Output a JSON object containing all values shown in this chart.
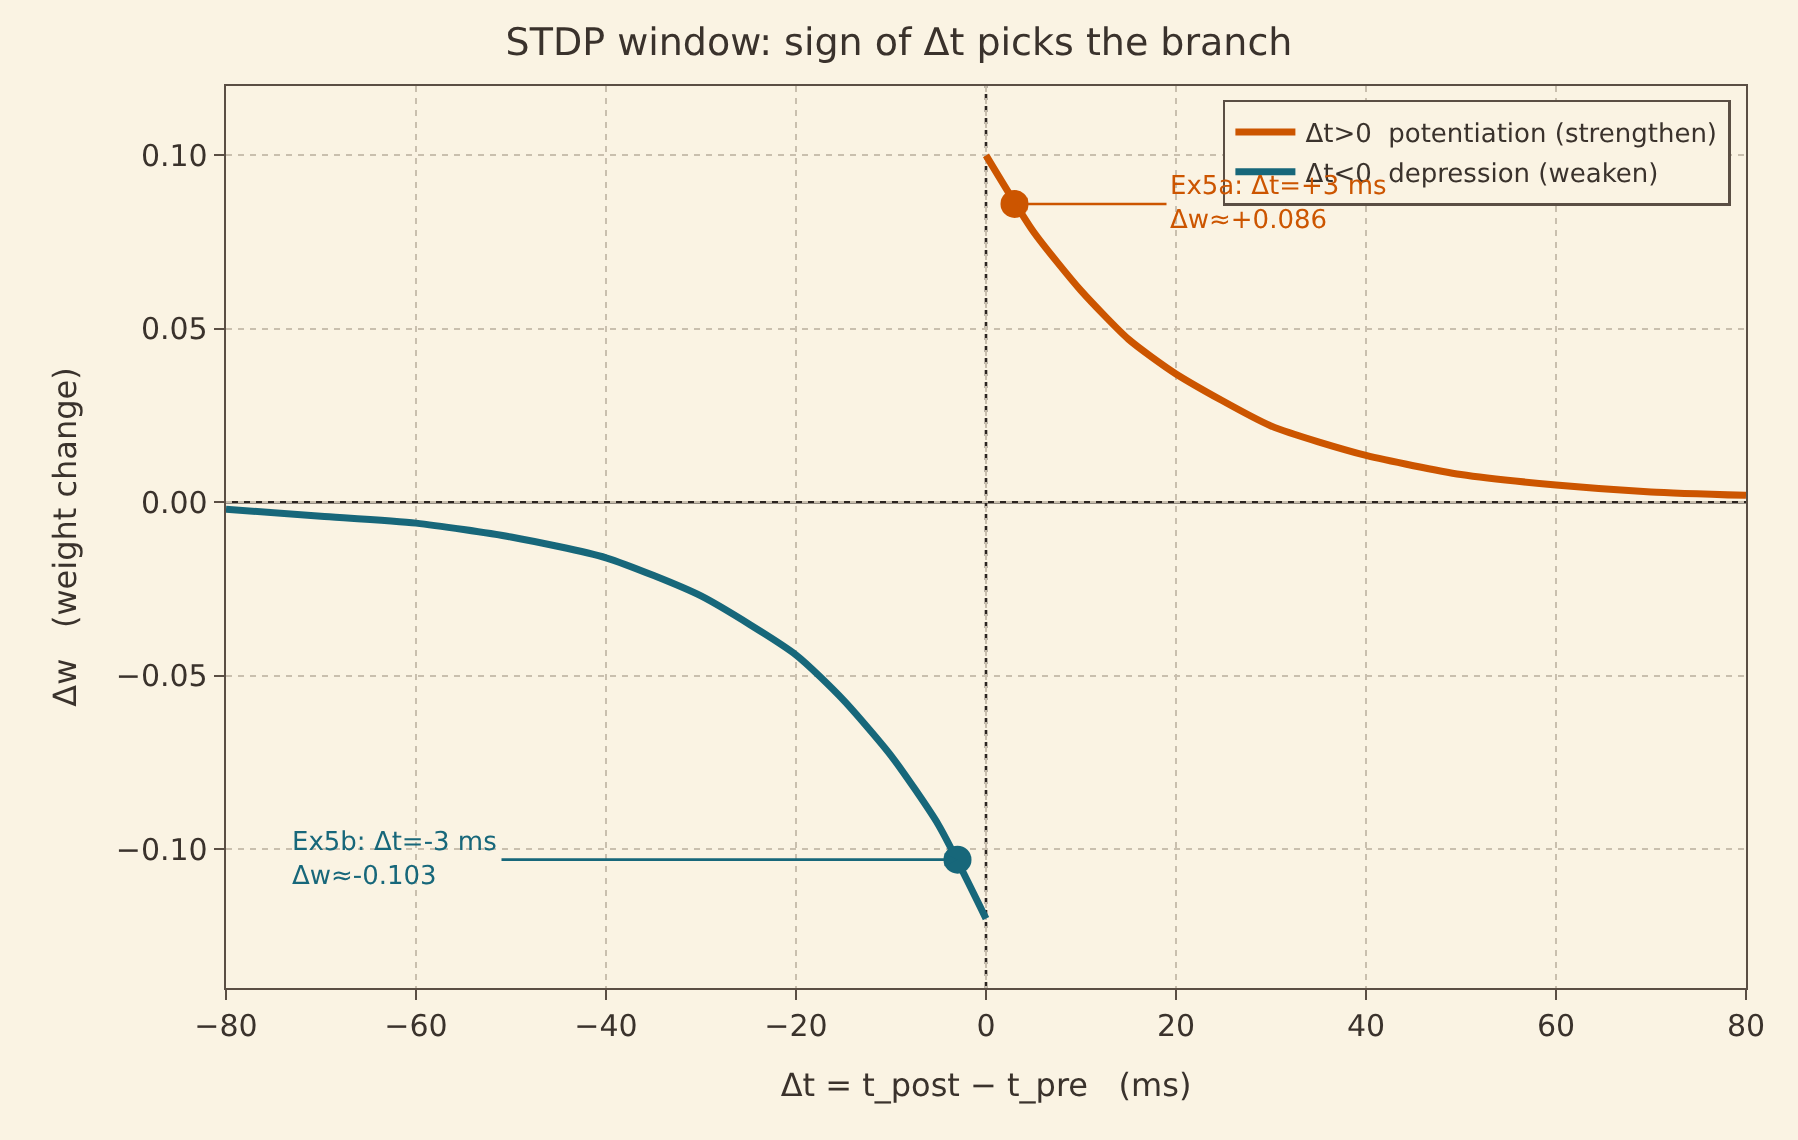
{
  "chart_data": {
    "type": "line",
    "title": "STDP window: sign of Δt picks the branch",
    "xlabel": "Δt = t_post − t_pre   (ms)",
    "ylabel": "Δw   (weight change)",
    "xlim": [
      -80,
      80
    ],
    "xticks": [
      {
        "value": -80,
        "label": "−80"
      },
      {
        "value": -60,
        "label": "−60"
      },
      {
        "value": -40,
        "label": "−40"
      },
      {
        "value": -20,
        "label": "−20"
      },
      0,
      20,
      40,
      60,
      80
    ],
    "ylim": [
      -0.14,
      0.12
    ],
    "yticks": [
      {
        "value": -0.1,
        "label": "−0.10"
      },
      {
        "value": -0.05,
        "label": "−0.05"
      },
      {
        "value": 0,
        "label": "0.00"
      },
      {
        "value": 0.05,
        "label": "0.05"
      },
      {
        "value": 0.1,
        "label": "0.10"
      }
    ],
    "grid": true,
    "legend": "top right",
    "marker": "none",
    "line_style": "solid",
    "series": [
      {
        "name": "Δt>0  potentiation (strengthen)",
        "color": "#cc5500",
        "x": [
          0,
          5,
          10,
          15,
          20,
          30,
          40,
          50,
          60,
          70,
          80
        ],
        "values": [
          0.1,
          0.078,
          0.061,
          0.047,
          0.037,
          0.022,
          0.0135,
          0.008,
          0.005,
          0.003,
          0.002
        ]
      },
      {
        "name": "Δt<0  depression (weaken)",
        "color": "#17677a",
        "x": [
          -80,
          -70,
          -60,
          -50,
          -40,
          -30,
          -20,
          -15,
          -10,
          -5,
          0
        ],
        "values": [
          -0.002,
          -0.004,
          -0.006,
          -0.01,
          -0.016,
          -0.027,
          -0.044,
          -0.057,
          -0.073,
          -0.093,
          -0.12
        ]
      },
      {
        "type": "scatter",
        "marker": "circle",
        "color": "#cc5500",
        "x": [
          3
        ],
        "values": [
          0.086
        ]
      },
      {
        "type": "scatter",
        "marker": "circle",
        "color": "#17677a",
        "x": [
          -3
        ],
        "values": [
          -0.103
        ]
      }
    ],
    "ref_lines": [
      {
        "axis": "y",
        "value": 0,
        "color": "#2b2420",
        "line_style": "solid"
      },
      {
        "axis": "x",
        "value": 0,
        "color": "#2b2420",
        "line_style": "dotted"
      }
    ],
    "annotations": [
      {
        "text": "Ex5a: Δt=+3 ms\nΔw≈+0.086",
        "x": 3,
        "y": 0.086
      },
      {
        "text": "Ex5b: Δt=-3 ms\nΔw≈-0.103",
        "x": -3,
        "y": -0.103
      }
    ]
  }
}
